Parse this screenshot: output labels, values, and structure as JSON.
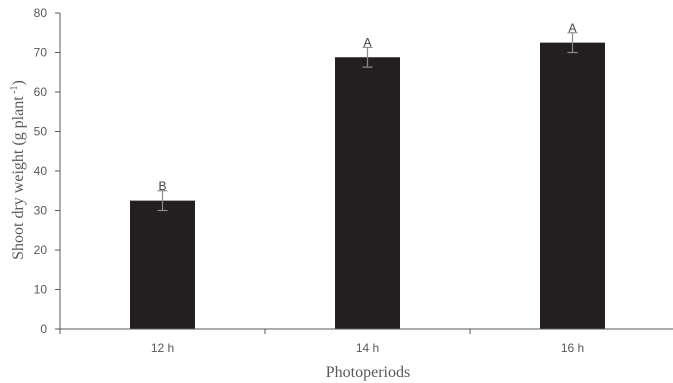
{
  "chart_data": {
    "type": "bar",
    "categories": [
      "12 h",
      "14 h",
      "16 h"
    ],
    "values": [
      32.5,
      68.8,
      72.5
    ],
    "errors": [
      2.5,
      2.5,
      2.5
    ],
    "significance_letters": [
      "B",
      "A",
      "A"
    ],
    "title": "",
    "xlabel": "Photoperiods",
    "ylabel": "Shoot dry weight (g plant⁻¹)",
    "ylabel_main": "Shoot dry weight (g plant",
    "ylabel_sup": " -1",
    "ylabel_close": ")",
    "ylim": [
      0,
      80
    ],
    "yticks": [
      0,
      10,
      20,
      30,
      40,
      50,
      60,
      70,
      80
    ],
    "grid": false,
    "bar_color": "#231f20",
    "axis_color": "#595959"
  }
}
